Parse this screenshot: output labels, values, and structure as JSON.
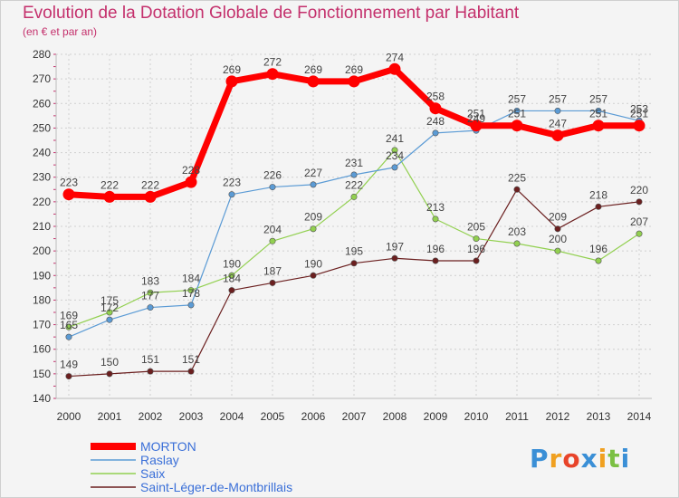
{
  "chart_data": {
    "type": "line",
    "title": "Evolution de la Dotation Globale de Fonctionnement par Habitant",
    "subtitle": "(en € et par an)",
    "xlabel": "",
    "ylabel": "",
    "ylim": [
      140,
      280
    ],
    "yticks": [
      140,
      150,
      160,
      170,
      180,
      190,
      200,
      210,
      220,
      230,
      240,
      250,
      260,
      270,
      280
    ],
    "grid": true,
    "legend": "bottom-left",
    "categories": [
      "2000",
      "2001",
      "2002",
      "2003",
      "2004",
      "2005",
      "2006",
      "2007",
      "2008",
      "2009",
      "2010",
      "2011",
      "2012",
      "2013",
      "2014"
    ],
    "series": [
      {
        "name": "MORTON",
        "color": "#ff0000",
        "values": [
          223,
          222,
          222,
          228,
          269,
          272,
          269,
          269,
          274,
          258,
          251,
          251,
          247,
          251,
          251
        ]
      },
      {
        "name": "Raslay",
        "color": "#5b9bd5",
        "values": [
          165,
          172,
          177,
          178,
          223,
          226,
          227,
          231,
          234,
          248,
          249,
          257,
          257,
          257,
          253
        ]
      },
      {
        "name": "Saix",
        "color": "#92d050",
        "values": [
          169,
          175,
          183,
          184,
          190,
          204,
          209,
          222,
          241,
          213,
          205,
          203,
          200,
          196,
          207
        ]
      },
      {
        "name": "Saint-Léger-de-Montbrillais",
        "color": "#6b1f1f",
        "values": [
          149,
          150,
          151,
          151,
          184,
          187,
          190,
          195,
          197,
          196,
          196,
          225,
          209,
          218,
          220
        ]
      }
    ]
  },
  "logo": {
    "text": "Proxiti",
    "letters": [
      "P",
      "r",
      "o",
      "x",
      "i",
      "t",
      "i"
    ],
    "colors": [
      "#3a8fd6",
      "#f0a020",
      "#e8442a",
      "#3a8fd6",
      "#f0a020",
      "#7bc043",
      "#3a8fd6"
    ]
  }
}
